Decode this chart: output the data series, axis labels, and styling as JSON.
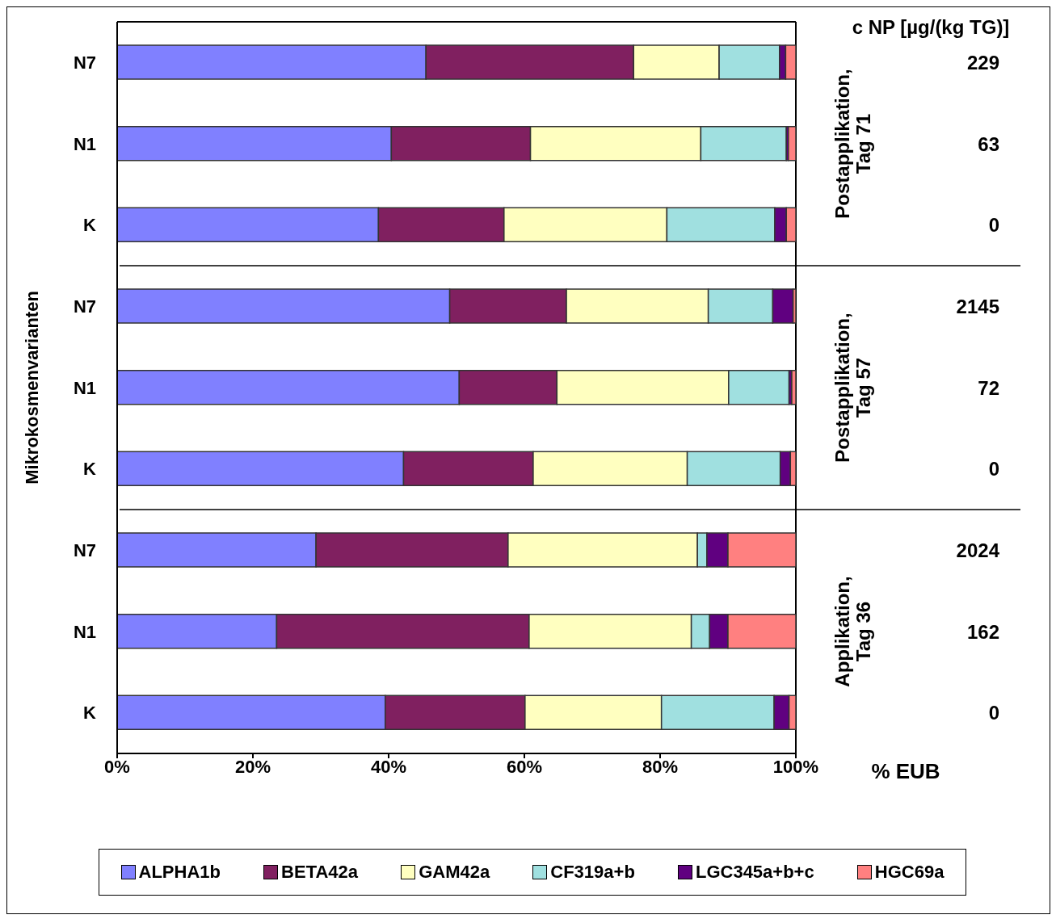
{
  "chart_data": {
    "type": "bar",
    "orientation": "horizontal",
    "stacked": true,
    "ylabel": "Mikrokosmenvarianten",
    "xlabel": "% EUB",
    "categories": [
      "N7",
      "N1",
      "K",
      "N7",
      "N1",
      "K",
      "N7",
      "N1",
      "K"
    ],
    "series": [
      {
        "name": "ALPHA1b",
        "color": "#8080ff",
        "values": [
          45.5,
          40.4,
          38.5,
          49.0,
          50.4,
          42.2,
          29.3,
          23.5,
          39.5
        ]
      },
      {
        "name": "BETA42a",
        "color": "#802060",
        "values": [
          30.6,
          20.5,
          18.5,
          17.2,
          14.4,
          19.1,
          28.3,
          37.2,
          20.6
        ]
      },
      {
        "name": "GAM42a",
        "color": "#ffffc0",
        "values": [
          12.6,
          25.1,
          24.0,
          20.9,
          25.3,
          22.7,
          27.9,
          23.9,
          20.1
        ]
      },
      {
        "name": "CF319a+b",
        "color": "#a0e0e0",
        "values": [
          8.9,
          12.6,
          15.9,
          9.5,
          8.9,
          13.7,
          1.4,
          2.7,
          16.6
        ]
      },
      {
        "name": "LGC345a+b+c",
        "color": "#600080",
        "values": [
          0.9,
          0.3,
          1.7,
          3.0,
          0.4,
          1.5,
          3.1,
          2.7,
          2.2
        ]
      },
      {
        "name": "HGC69a",
        "color": "#ff8080",
        "values": [
          1.5,
          1.1,
          1.4,
          0.4,
          0.6,
          0.8,
          10.0,
          10.0,
          1.0
        ]
      }
    ],
    "xlim": [
      0,
      100
    ],
    "xticks": [
      {
        "value": 0,
        "label": "0%"
      },
      {
        "value": 20,
        "label": "20%"
      },
      {
        "value": 40,
        "label": "40%"
      },
      {
        "value": 60,
        "label": "60%"
      },
      {
        "value": 80,
        "label": "80%"
      },
      {
        "value": 100,
        "label": "100%"
      }
    ],
    "annotations": [
      "c NP [µg/(kg TG)]",
      "229",
      "63",
      "0",
      "2145",
      "72",
      "0",
      "2024",
      "162",
      "0",
      "Postapplikation, Tag 71",
      "Postapplikation, Tag 57",
      "Applikation, Tag 36"
    ],
    "legend": "bottom",
    "grid": false
  }
}
